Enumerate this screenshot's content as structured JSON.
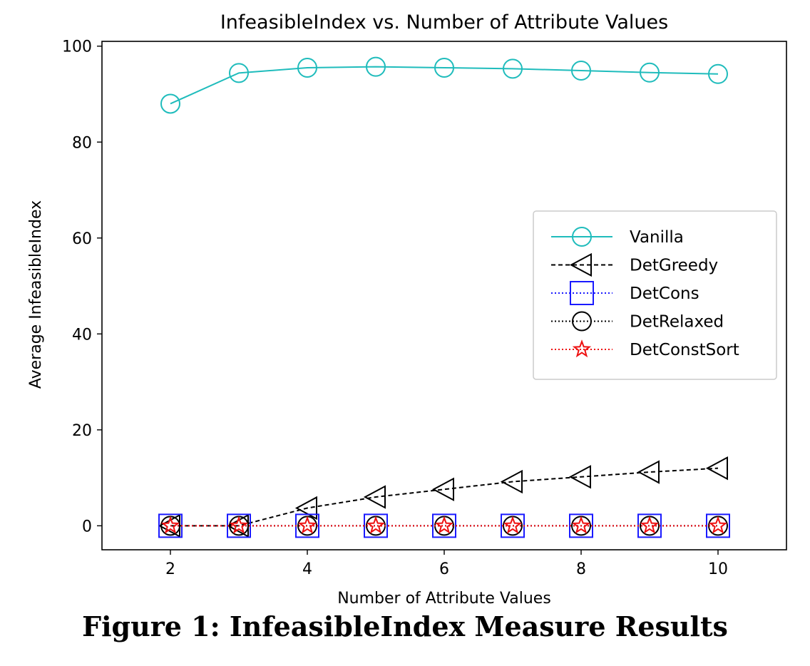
{
  "chart_data": {
    "type": "line",
    "title": "InfeasibleIndex vs. Number of Attribute Values",
    "xlabel": "Number of Attribute Values",
    "ylabel": "Average InfeasibleIndex",
    "x": [
      2,
      3,
      4,
      5,
      6,
      7,
      8,
      9,
      10
    ],
    "xlim": [
      1,
      11
    ],
    "ylim": [
      -5,
      101
    ],
    "xticks": [
      2,
      4,
      6,
      8,
      10
    ],
    "yticks": [
      0,
      20,
      40,
      60,
      80,
      100
    ],
    "grid": false,
    "legend_position": "center-right",
    "series": [
      {
        "name": "Vanilla",
        "color": "#1fbcbc",
        "linestyle": "solid",
        "marker": "circle",
        "values": [
          88.0,
          94.4,
          95.5,
          95.7,
          95.5,
          95.3,
          94.9,
          94.5,
          94.2
        ]
      },
      {
        "name": "DetGreedy",
        "color": "#000000",
        "linestyle": "dashed",
        "marker": "triangle-left",
        "values": [
          0.0,
          0.0,
          3.7,
          6.0,
          7.6,
          9.2,
          10.2,
          11.2,
          12.0
        ]
      },
      {
        "name": "DetCons",
        "color": "#1a1aff",
        "linestyle": "dotted",
        "marker": "square",
        "values": [
          0,
          0,
          0,
          0,
          0,
          0,
          0,
          0,
          0
        ]
      },
      {
        "name": "DetRelaxed",
        "color": "#000000",
        "linestyle": "dotted",
        "marker": "circle",
        "values": [
          0,
          0,
          0,
          0,
          0,
          0,
          0,
          0,
          0
        ]
      },
      {
        "name": "DetConstSort",
        "color": "#ee1111",
        "linestyle": "dotted",
        "marker": "star",
        "values": [
          0,
          0,
          0,
          0,
          0,
          0,
          0,
          0,
          0
        ]
      }
    ]
  },
  "caption": "Figure 1: InfeasibleIndex Measure Results"
}
